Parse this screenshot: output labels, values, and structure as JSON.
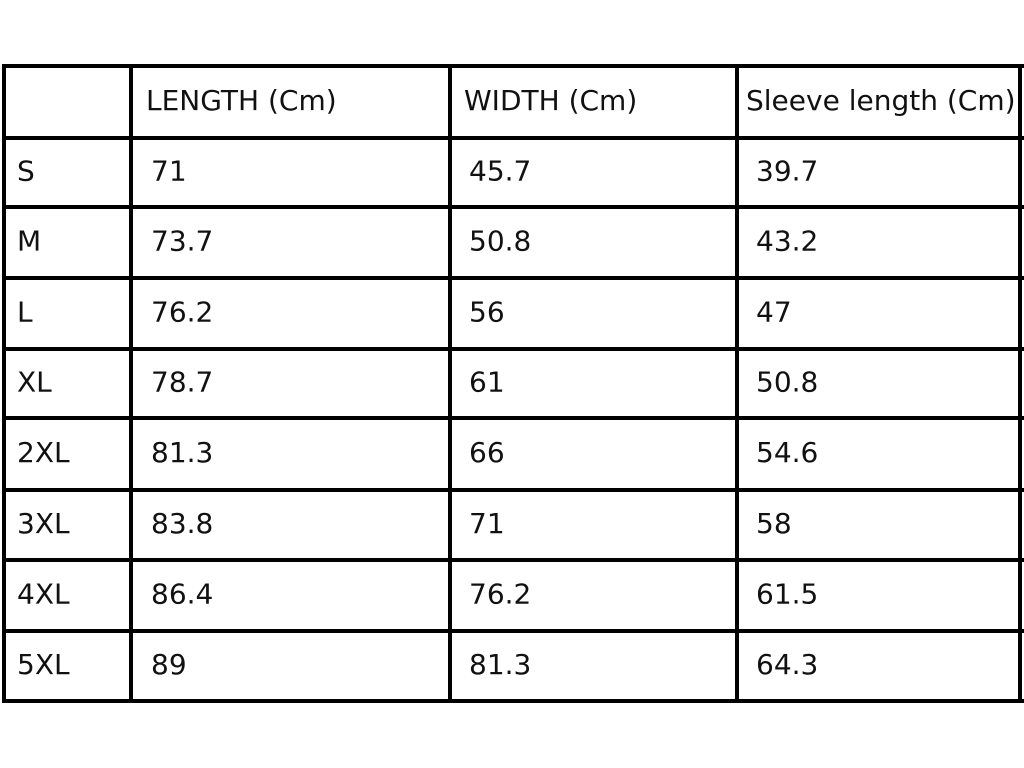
{
  "table": {
    "columns": [
      "LENGTH (Cm)",
      "WIDTH (Cm)",
      "Sleeve length (Cm)"
    ],
    "rows": [
      [
        "S",
        71,
        45.7,
        39.7
      ],
      [
        "M",
        73.7,
        50.8,
        43.2
      ],
      [
        "L",
        76.2,
        56,
        47
      ],
      [
        "XL",
        78.7,
        61,
        50.8
      ],
      [
        "2XL",
        81.3,
        66,
        54.6
      ],
      [
        "3XL",
        83.8,
        71,
        58
      ],
      [
        "4XL",
        86.4,
        76.2,
        61.5
      ],
      [
        "5XL",
        89,
        81.3,
        64.3
      ]
    ]
  }
}
